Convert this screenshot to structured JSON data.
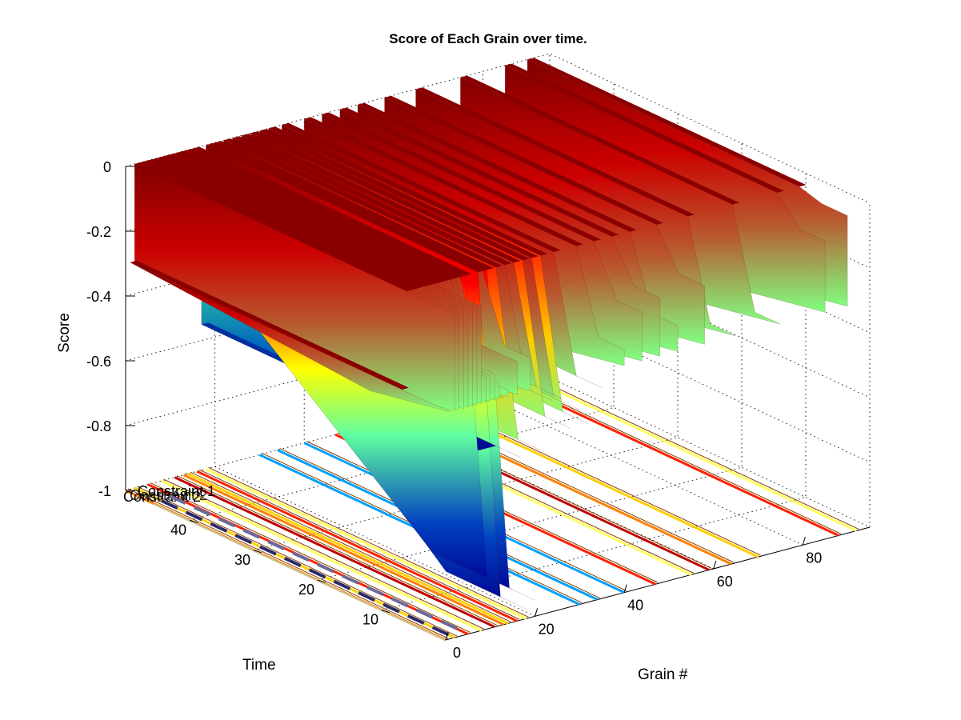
{
  "chart_data": {
    "type": "surface-3d",
    "title": "Score of Each Grain over time.",
    "xlabel": "Grain #",
    "ylabel": "Time",
    "zlabel": "Score",
    "xlim": [
      0,
      95
    ],
    "ylim": [
      0,
      50
    ],
    "zlim": [
      -1,
      0
    ],
    "x_ticks": [
      "0",
      "20",
      "40",
      "60",
      "80"
    ],
    "y_ticks": [
      "10",
      "20",
      "30",
      "40"
    ],
    "z_ticks": [
      "0",
      "-0.2",
      "-0.4",
      "-0.6",
      "-0.8",
      "-1"
    ],
    "colormap": "jet",
    "grid": true,
    "grains": [
      {
        "grain": 1,
        "start": -0.3,
        "end": -0.3
      },
      {
        "grain": 2,
        "start": 0,
        "end": 0
      },
      {
        "grain": 3,
        "start": 0,
        "end": 0
      },
      {
        "grain": 4,
        "start": 0,
        "end": 0
      },
      {
        "grain": 5,
        "start": 0,
        "end": 0
      },
      {
        "grain": 6,
        "start": 0,
        "end": 0
      },
      {
        "grain": 7,
        "start": 0,
        "end": 0
      },
      {
        "grain": 8,
        "start": 0,
        "end": 0
      },
      {
        "grain": 9,
        "start": 0,
        "end": -0.22
      },
      {
        "grain": 10,
        "start": 0,
        "end": -0.22
      },
      {
        "grain": 11,
        "start": 0,
        "end": -0.22
      },
      {
        "grain": 12,
        "start": 0,
        "end": -0.25
      },
      {
        "grain": 13,
        "start": 0,
        "end": -0.3
      },
      {
        "grain": 14,
        "start": 0,
        "end": -0.28
      },
      {
        "grain": 15,
        "start": 0,
        "end": -0.9
      },
      {
        "grain": 16,
        "start": -0.2,
        "end": -0.2
      },
      {
        "grain": 17,
        "start": -0.55,
        "end": -0.5
      },
      {
        "grain": 18,
        "start": 0,
        "end": -0.97
      },
      {
        "grain": 19,
        "start": 0,
        "end": -0.2
      },
      {
        "grain": 20,
        "start": 0,
        "end": -0.95
      },
      {
        "grain": 22,
        "start": 0,
        "end": -0.5
      },
      {
        "grain": 24,
        "start": 0,
        "end": -0.35
      },
      {
        "grain": 26,
        "start": 0,
        "end": -0.35
      },
      {
        "grain": 28,
        "start": 0,
        "end": -0.45
      },
      {
        "grain": 30,
        "start": 0,
        "end": -0.4
      },
      {
        "grain": 32,
        "start": 0,
        "end": -0.45
      },
      {
        "grain": 35,
        "start": 0,
        "end": -0.35
      },
      {
        "grain": 40,
        "start": 0,
        "end": -0.25
      },
      {
        "grain": 44,
        "start": 0,
        "end": -0.15
      },
      {
        "grain": 48,
        "start": 0,
        "end": -0.12
      },
      {
        "grain": 52,
        "start": 0,
        "end": -0.22
      },
      {
        "grain": 58,
        "start": 0,
        "end": -0.12
      },
      {
        "grain": 65,
        "start": 0,
        "end": -0.3
      },
      {
        "grain": 75,
        "start": 0,
        "end": -0.3
      },
      {
        "grain": 85,
        "start": 0,
        "end": -0.08
      },
      {
        "grain": 90,
        "start": 0,
        "end": -0.02
      }
    ],
    "floor_lines_grains": [
      0,
      2,
      5,
      8,
      11,
      13,
      14,
      16,
      18,
      30,
      34,
      40,
      47,
      55,
      59,
      64,
      70,
      88,
      92
    ],
    "legend": {
      "entries": [
        "Constraint 1",
        "Constraint 2"
      ],
      "overlap_text": "Constraint 2"
    }
  },
  "colors": {
    "jet_dark_red": "#800000",
    "jet_red": "#ff0000",
    "jet_yellow": "#ffff00",
    "jet_green": "#80ff80",
    "jet_cyan": "#00ffff",
    "jet_blue": "#0000ff",
    "jet_dark_blue": "#000090",
    "legend_line_1": "#2a2a6a",
    "legend_line_2": "#6a6a9a"
  }
}
